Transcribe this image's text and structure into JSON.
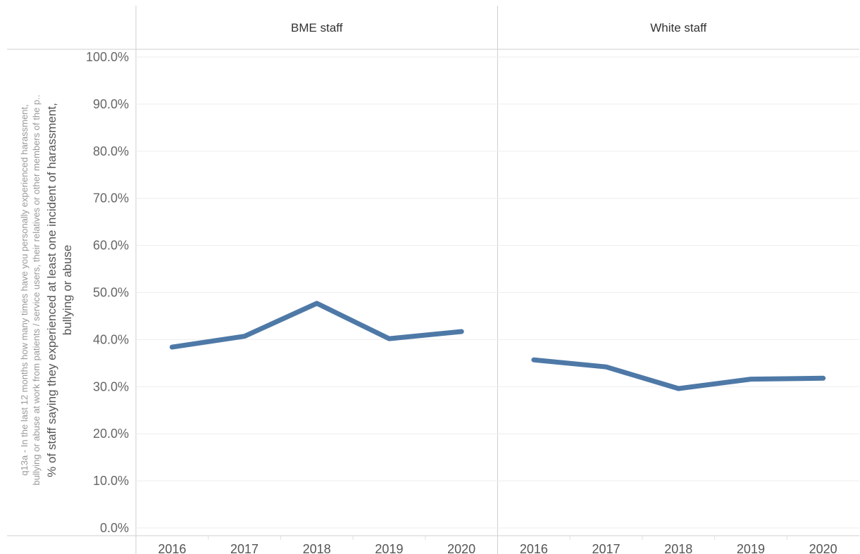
{
  "chart_data": {
    "type": "line",
    "columns": [
      "BME staff",
      "White staff"
    ],
    "categories": [
      "2016",
      "2017",
      "2018",
      "2019",
      "2020"
    ],
    "series": [
      {
        "values": [
          [
            38.4,
            40.7,
            47.7,
            40.2,
            41.7
          ],
          [
            35.7,
            34.2,
            29.6,
            31.6,
            31.8
          ]
        ]
      }
    ],
    "y_outer_label_lines": [
      "q13a - In the last 12 months how many times have you personally experienced harassment,",
      "bullying or abuse at work from patients / service users, their relatives or other members of the p.."
    ],
    "y_inner_label_lines": [
      "% of staff saying they experienced at least one incident of harassment,",
      "bullying or abuse"
    ],
    "y_ticks": [
      "0.0%",
      "10.0%",
      "20.0%",
      "30.0%",
      "40.0%",
      "50.0%",
      "60.0%",
      "70.0%",
      "80.0%",
      "90.0%",
      "100.0%"
    ],
    "ylim": [
      0,
      100
    ],
    "grid": true,
    "line_color": "#4e79a7"
  }
}
